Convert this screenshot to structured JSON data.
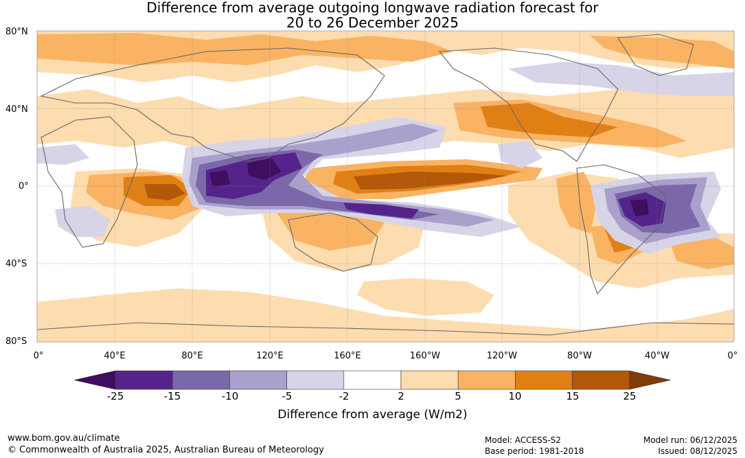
{
  "title": {
    "line1": "Difference from average outgoing longwave radiation forecast for",
    "line2": "20 to 26 December 2025"
  },
  "map": {
    "lat_labels": [
      "80°N",
      "40°N",
      "0°",
      "40°S",
      "80°S"
    ],
    "lon_labels": [
      "0°",
      "40°E",
      "80°E",
      "120°E",
      "160°E",
      "160°W",
      "120°W",
      "80°W",
      "40°W",
      "0°"
    ]
  },
  "colorbar": {
    "title": "Difference from average (W/m2)",
    "ticks": [
      "-25",
      "-15",
      "-10",
      "-5",
      "-2",
      "2",
      "5",
      "10",
      "15",
      "25"
    ],
    "colors": [
      "#3f0e5e",
      "#55238c",
      "#7b68a8",
      "#aaa0cc",
      "#d7d4e8",
      "#ffffff",
      "#fddcb0",
      "#f9b363",
      "#e08014",
      "#b35808",
      "#7f3b08"
    ]
  },
  "footer": {
    "website": "www.bom.gov.au/climate",
    "copyright": "© Commonwealth of Australia 2025, Australian Bureau of Meteorology",
    "model": "Model: ACCESS-S2",
    "base_period": "Base period: 1981-2018",
    "model_run": "Model run: 06/12/2025",
    "issued": "Issued: 08/12/2025"
  }
}
